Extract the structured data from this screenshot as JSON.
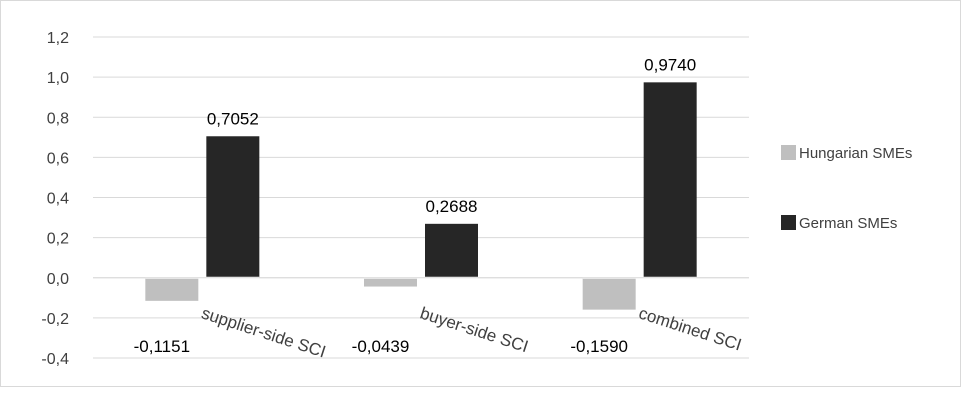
{
  "chart_data": {
    "type": "bar",
    "categories": [
      "supplier-side SCI",
      "buyer-side SCI",
      "combined SCI"
    ],
    "series": [
      {
        "name": "Hungarian SMEs",
        "values": [
          -0.1151,
          -0.0439,
          -0.159
        ],
        "labels": [
          "-0,1151",
          "-0,0439",
          "-0,1590"
        ],
        "color": "#bfbfbf"
      },
      {
        "name": "German SMEs",
        "values": [
          0.7052,
          0.2688,
          0.974
        ],
        "labels": [
          "0,7052",
          "0,2688",
          "0,9740"
        ],
        "color": "#262626"
      }
    ],
    "ylim": [
      -0.4,
      1.2
    ],
    "yticks": [
      1.2,
      1.0,
      0.8,
      0.6,
      0.4,
      0.2,
      0.0,
      -0.2,
      -0.4
    ],
    "ytick_labels": [
      "1,2",
      "1,0",
      "0,8",
      "0,6",
      "0,4",
      "0,2",
      "0,0",
      "-0,2",
      "-0,4"
    ],
    "grid": true,
    "legend_position": "right",
    "gridline_color": "#d9d9d9"
  }
}
